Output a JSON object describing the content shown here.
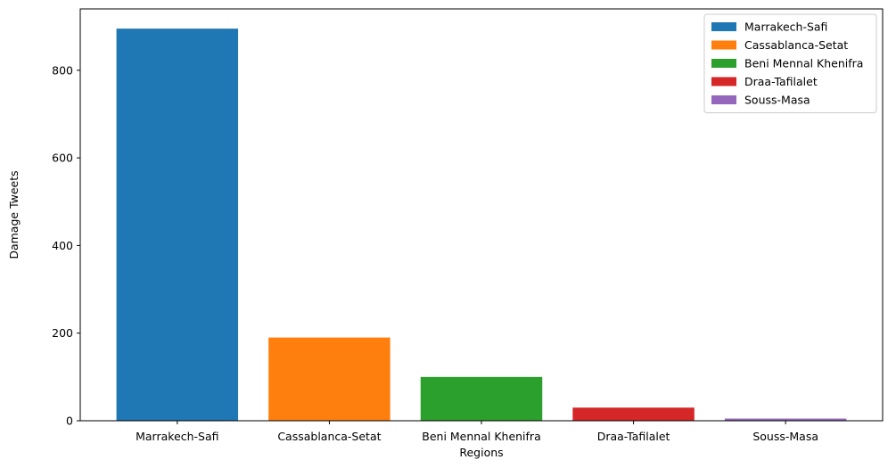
{
  "chart_data": {
    "type": "bar",
    "categories": [
      "Marrakech-Safi",
      "Cassablanca-Setat",
      "Beni Mennal Khenifra",
      "Draa-Tafilalet",
      "Souss-Masa"
    ],
    "values": [
      895,
      190,
      100,
      30,
      5
    ],
    "colors": [
      "#1f77b4",
      "#ff7f0e",
      "#2ca02c",
      "#d62728",
      "#9467bd"
    ],
    "xlabel": "Regions",
    "ylabel": "Damage Tweets",
    "ylim": [
      0,
      940
    ],
    "yticks": [
      0,
      200,
      400,
      600,
      800
    ],
    "grid": false,
    "legend": {
      "placement": "top-right",
      "entries": [
        "Marrakech-Safi",
        "Cassablanca-Setat",
        "Beni Mennal Khenifra",
        "Draa-Tafilalet",
        "Souss-Masa"
      ]
    }
  }
}
